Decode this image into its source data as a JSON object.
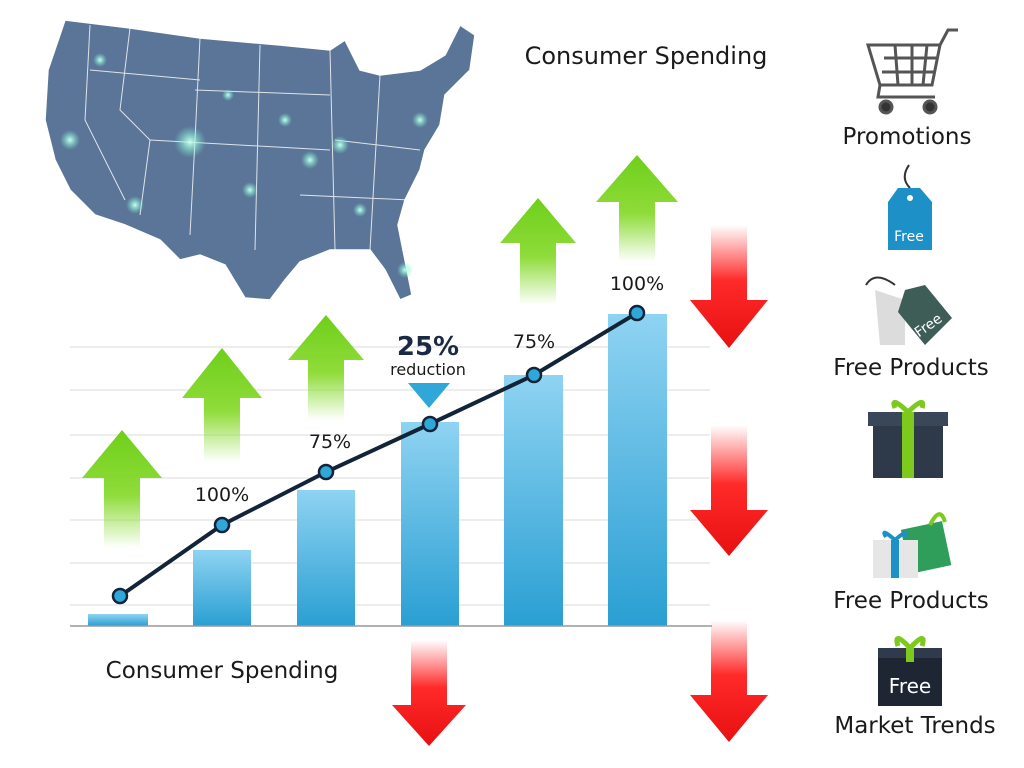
{
  "title": "Consumer Spending",
  "chart_caption": "Consumer Spending",
  "point_labels": [
    "100%",
    "75%",
    "75%",
    "100%"
  ],
  "callout": {
    "value": "25%",
    "text": "reduction"
  },
  "sidebar": {
    "labels": [
      "Promotions",
      "Free Products",
      "Free Products",
      "Market Trends"
    ],
    "icon_texts": [
      "Free",
      "Free",
      "Free"
    ]
  }
}
